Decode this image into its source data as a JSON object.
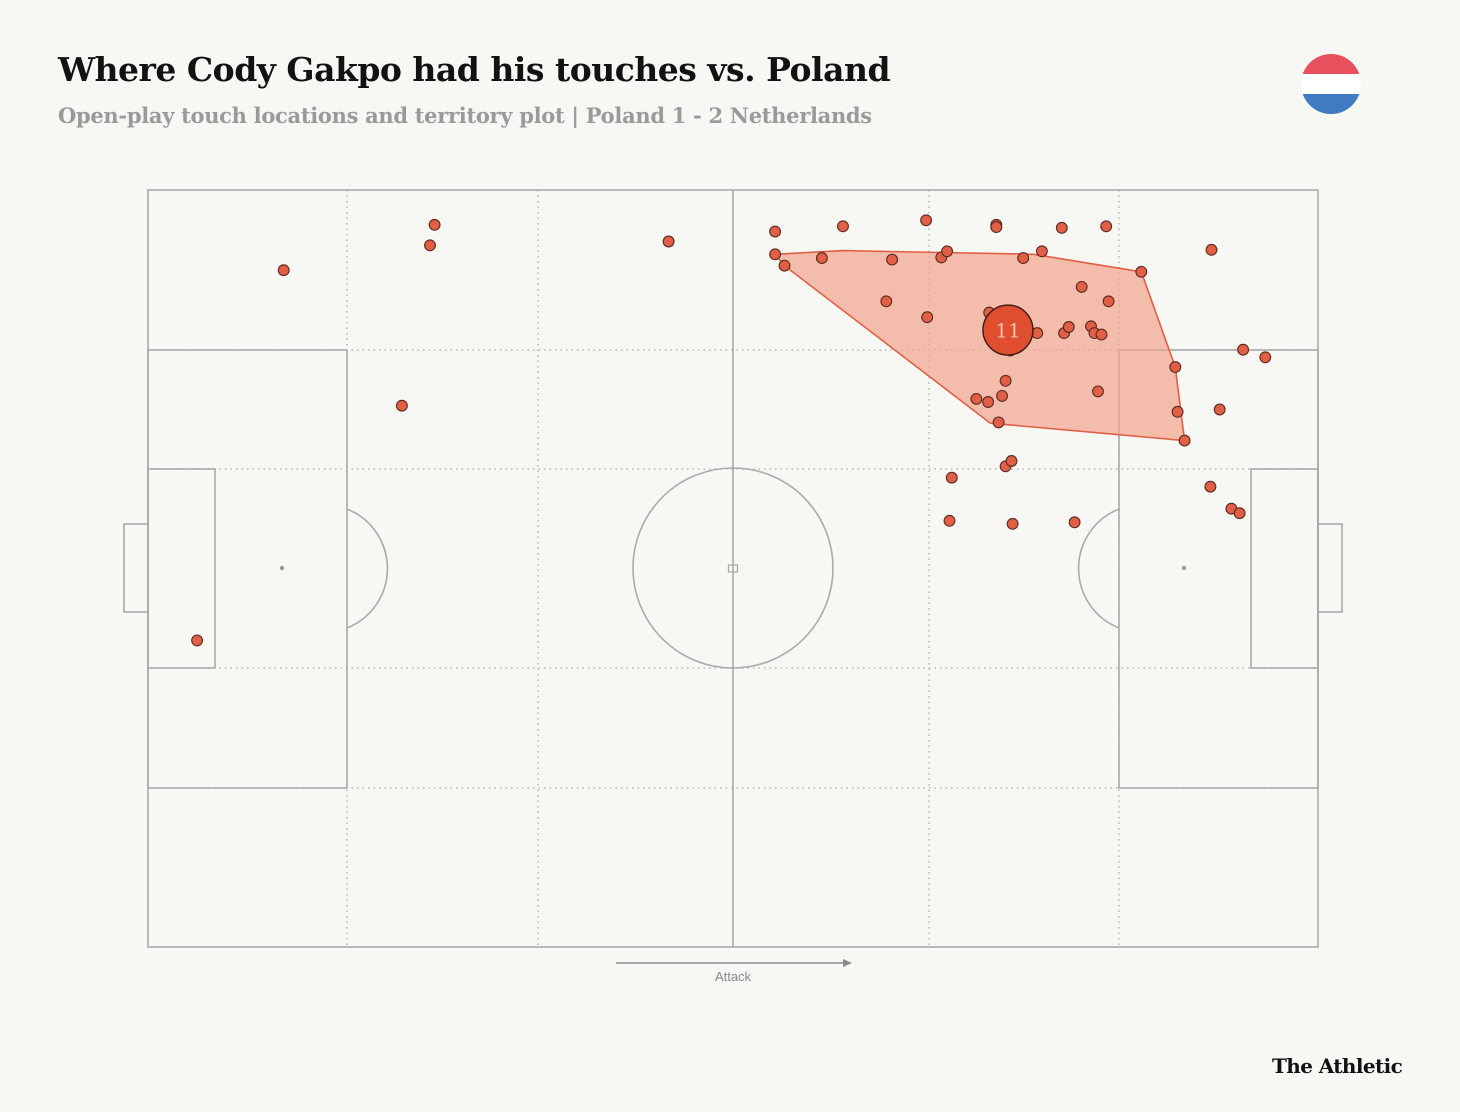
{
  "header": {
    "title": "Where Cody Gakpo had his touches vs. Poland",
    "subtitle": "Open-play touch locations and territory plot |  Poland 1 - 2 Netherlands"
  },
  "flag": {
    "name": "netherlands-flag-icon",
    "colors": [
      "#e9505d",
      "#ffffff",
      "#3f7ac2"
    ]
  },
  "colors": {
    "background": "#f7f7f3",
    "touch_fill": "#e15f45",
    "touch_stroke": "#5a2a20",
    "territory_fill": "#f2a48c",
    "territory_stroke": "#e15f45",
    "player_marker": "#df4e2e",
    "pitch_lines": "#aaaaaa"
  },
  "chart_data": {
    "type": "scatter",
    "description_units": "pitch coordinates 0-100 (x: attacking direction left to right, y: top touchline 0 to bottom touchline 100)",
    "xlim": [
      0,
      100
    ],
    "ylim": [
      0,
      100
    ],
    "attack_direction": "right",
    "attack_label": "Attack",
    "player_number": "11",
    "average_position": [
      73.5,
      18.5
    ],
    "touches": [
      [
        11.6,
        10.6
      ],
      [
        24.1,
        7.3
      ],
      [
        24.5,
        4.6
      ],
      [
        21.7,
        28.5
      ],
      [
        4.2,
        59.5
      ],
      [
        44.5,
        6.8
      ],
      [
        53.6,
        5.5
      ],
      [
        53.6,
        8.5
      ],
      [
        54.4,
        10.0
      ],
      [
        59.4,
        4.8
      ],
      [
        57.6,
        9.0
      ],
      [
        63.6,
        9.2
      ],
      [
        66.5,
        4.0
      ],
      [
        67.8,
        8.9
      ],
      [
        68.3,
        8.1
      ],
      [
        72.5,
        4.6
      ],
      [
        72.5,
        4.9
      ],
      [
        74.8,
        9.0
      ],
      [
        76.4,
        8.1
      ],
      [
        78.1,
        5.0
      ],
      [
        81.9,
        4.8
      ],
      [
        79.8,
        12.8
      ],
      [
        84.9,
        10.8
      ],
      [
        82.1,
        14.7
      ],
      [
        63.1,
        14.7
      ],
      [
        66.6,
        16.8
      ],
      [
        71.9,
        16.2
      ],
      [
        73.5,
        18.2
      ],
      [
        76.0,
        18.9
      ],
      [
        78.3,
        18.9
      ],
      [
        78.7,
        18.1
      ],
      [
        80.6,
        18.0
      ],
      [
        80.9,
        18.9
      ],
      [
        81.5,
        19.1
      ],
      [
        73.7,
        21.2
      ],
      [
        73.3,
        25.2
      ],
      [
        81.2,
        26.6
      ],
      [
        70.8,
        27.6
      ],
      [
        71.8,
        28.0
      ],
      [
        73.0,
        27.2
      ],
      [
        72.7,
        30.7
      ],
      [
        87.8,
        23.4
      ],
      [
        88.0,
        29.3
      ],
      [
        88.6,
        33.1
      ],
      [
        91.6,
        29.0
      ],
      [
        93.6,
        21.1
      ],
      [
        95.5,
        22.1
      ],
      [
        90.9,
        7.9
      ],
      [
        73.3,
        36.5
      ],
      [
        73.8,
        35.8
      ],
      [
        68.7,
        38.0
      ],
      [
        68.5,
        43.7
      ],
      [
        73.9,
        44.1
      ],
      [
        79.2,
        43.9
      ],
      [
        90.8,
        39.2
      ],
      [
        92.6,
        42.1
      ],
      [
        93.3,
        42.7
      ]
    ],
    "territory_polygon": [
      [
        53.6,
        8.5
      ],
      [
        59.4,
        8.0
      ],
      [
        75.7,
        8.5
      ],
      [
        84.9,
        10.8
      ],
      [
        87.8,
        23.4
      ],
      [
        88.6,
        33.1
      ],
      [
        72.0,
        30.8
      ],
      [
        54.4,
        10.0
      ]
    ]
  },
  "footer": {
    "brand": "The Athletic"
  }
}
